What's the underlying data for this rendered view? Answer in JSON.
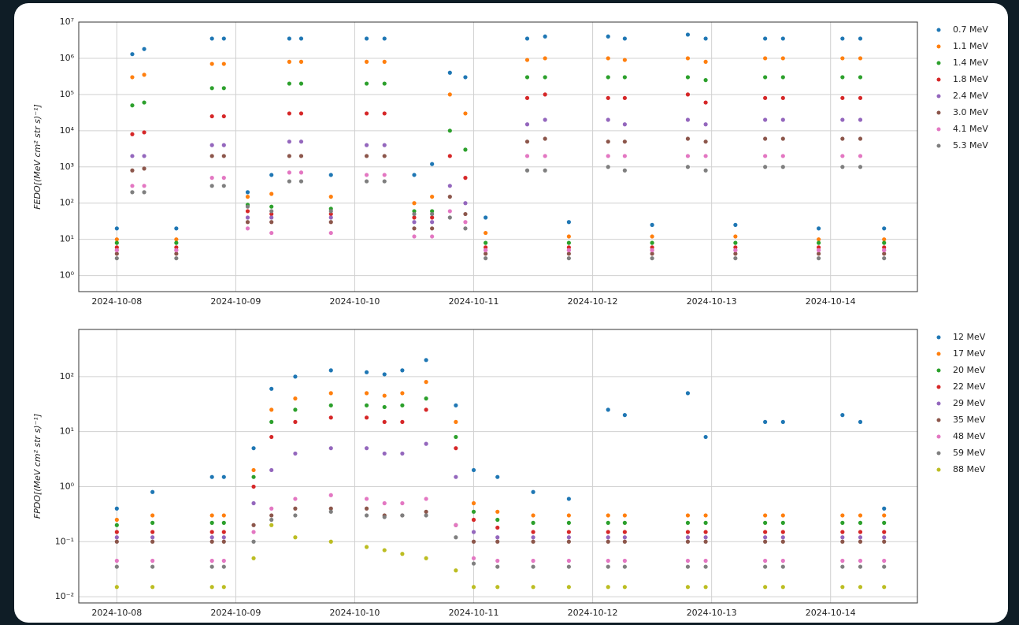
{
  "chart_data": [
    {
      "type": "scatter",
      "y_label": "FEDO[(MeV cm² str s)⁻¹]",
      "yscale": "log",
      "grid": true,
      "legend": "right",
      "xlim": [
        -0.32,
        6.73
      ],
      "xticks": [
        {
          "value": 0,
          "label": "2024-10-08"
        },
        {
          "value": 1,
          "label": "2024-10-09"
        },
        {
          "value": 2,
          "label": "2024-10-10"
        },
        {
          "value": 3,
          "label": "2024-10-11"
        },
        {
          "value": 4,
          "label": "2024-10-12"
        },
        {
          "value": 5,
          "label": "2024-10-13"
        },
        {
          "value": 6,
          "label": "2024-10-14"
        }
      ],
      "ylim": [
        0.36,
        10000000
      ],
      "yticks": [
        {
          "value": 1,
          "label": "10⁰"
        },
        {
          "value": 10,
          "label": "10¹"
        },
        {
          "value": 100,
          "label": "10²"
        },
        {
          "value": 1000,
          "label": "10³"
        },
        {
          "value": 10000,
          "label": "10⁴"
        },
        {
          "value": 100000,
          "label": "10⁵"
        },
        {
          "value": 1000000,
          "label": "10⁶"
        },
        {
          "value": 10000000,
          "label": "10⁷"
        }
      ],
      "x": [
        0,
        0.13,
        0.23,
        0.5,
        0.8,
        0.9,
        1.1,
        1.3,
        1.45,
        1.55,
        1.8,
        2.1,
        2.25,
        2.5,
        2.65,
        2.8,
        2.93,
        3.1,
        3.45,
        3.6,
        3.8,
        4.13,
        4.27,
        4.5,
        4.8,
        4.95,
        5.2,
        5.45,
        5.6,
        5.9,
        6.1,
        6.25,
        6.45
      ],
      "series": [
        {
          "name": "0.7 MeV",
          "color": "#1f77b4",
          "values": [
            20,
            1300000.0,
            1800000.0,
            20,
            3500000.0,
            3500000.0,
            200,
            600,
            3500000.0,
            3500000.0,
            600,
            3500000.0,
            3500000.0,
            600,
            1200,
            400000.0,
            300000.0,
            40,
            3500000.0,
            4000000.0,
            30,
            4000000.0,
            3500000.0,
            25,
            4500000.0,
            3500000.0,
            25,
            3500000.0,
            3500000.0,
            20,
            3500000.0,
            3500000.0,
            20
          ]
        },
        {
          "name": "1.1 MeV",
          "color": "#ff7f0e",
          "values": [
            10,
            300000.0,
            350000.0,
            10,
            700000.0,
            700000.0,
            150,
            180,
            800000.0,
            800000.0,
            150,
            800000.0,
            800000.0,
            100,
            150,
            100000.0,
            30000.0,
            15,
            900000.0,
            1000000.0,
            12,
            1000000.0,
            900000.0,
            12,
            1000000.0,
            800000.0,
            12,
            1000000.0,
            1000000.0,
            10,
            1000000.0,
            1000000.0,
            10
          ]
        },
        {
          "name": "1.4 MeV",
          "color": "#2ca02c",
          "values": [
            8,
            50000.0,
            60000.0,
            8,
            150000.0,
            150000.0,
            90,
            80,
            200000.0,
            200000.0,
            70,
            200000.0,
            200000.0,
            60,
            60,
            10000.0,
            3000.0,
            8,
            300000.0,
            300000.0,
            8,
            300000.0,
            300000.0,
            8,
            300000.0,
            250000.0,
            8,
            300000.0,
            300000.0,
            8,
            300000.0,
            300000.0,
            8
          ]
        },
        {
          "name": "1.8 MeV",
          "color": "#d62728",
          "values": [
            6,
            8000.0,
            9000.0,
            6,
            25000.0,
            25000.0,
            60,
            50,
            30000.0,
            30000.0,
            50,
            30000.0,
            30000.0,
            40,
            40,
            2000.0,
            500,
            6,
            80000.0,
            100000.0,
            6,
            80000.0,
            80000.0,
            6,
            100000.0,
            60000.0,
            6,
            80000.0,
            80000.0,
            6,
            80000.0,
            80000.0,
            6
          ]
        },
        {
          "name": "2.4 MeV",
          "color": "#9467bd",
          "values": [
            5,
            2000.0,
            2000.0,
            5,
            4000.0,
            4000.0,
            40,
            40,
            5000.0,
            5000.0,
            40,
            4000.0,
            4000.0,
            30,
            30,
            300,
            100,
            5,
            15000.0,
            20000.0,
            5,
            20000.0,
            15000.0,
            5,
            20000.0,
            15000.0,
            5,
            20000.0,
            20000.0,
            5,
            20000.0,
            20000.0,
            5
          ]
        },
        {
          "name": "3.0 MeV",
          "color": "#8c564b",
          "values": [
            4,
            800,
            900,
            4,
            2000.0,
            2000.0,
            30,
            30,
            2000.0,
            2000.0,
            30,
            2000.0,
            2000.0,
            20,
            20,
            150,
            50,
            4,
            5000.0,
            6000.0,
            4,
            5000.0,
            5000.0,
            4,
            6000.0,
            5000.0,
            4,
            6000.0,
            6000.0,
            4,
            6000.0,
            6000.0,
            4
          ]
        },
        {
          "name": "4.1 MeV",
          "color": "#e377c2",
          "values": [
            5,
            300,
            300,
            5,
            500,
            500,
            20,
            15,
            700,
            700,
            15,
            600,
            600,
            12,
            12,
            60,
            30,
            5,
            2000.0,
            2000.0,
            5,
            2000.0,
            2000.0,
            5,
            2000.0,
            2000.0,
            5,
            2000.0,
            2000.0,
            5,
            2000.0,
            2000.0,
            5
          ]
        },
        {
          "name": "5.3 MeV",
          "color": "#7f7f7f",
          "values": [
            3,
            200,
            200,
            3,
            300,
            300,
            80,
            60,
            400,
            400,
            60,
            400,
            400,
            50,
            50,
            40,
            20,
            3,
            800,
            800,
            3,
            1000.0,
            800,
            3,
            1000.0,
            800,
            3,
            1000.0,
            1000.0,
            3,
            1000.0,
            1000.0,
            3
          ]
        }
      ]
    },
    {
      "type": "scatter",
      "y_label": "FPDO[(MeV cm² str s)⁻¹]",
      "yscale": "log",
      "grid": true,
      "legend": "right",
      "xlim": [
        -0.32,
        6.73
      ],
      "xticks": [
        {
          "value": 0,
          "label": "2024-10-08"
        },
        {
          "value": 1,
          "label": "2024-10-09"
        },
        {
          "value": 2,
          "label": "2024-10-10"
        },
        {
          "value": 3,
          "label": "2024-10-11"
        },
        {
          "value": 4,
          "label": "2024-10-12"
        },
        {
          "value": 5,
          "label": "2024-10-13"
        },
        {
          "value": 6,
          "label": "2024-10-14"
        }
      ],
      "ylim": [
        0.0077,
        720
      ],
      "yticks": [
        {
          "value": 0.01,
          "label": "10⁻²"
        },
        {
          "value": 0.1,
          "label": "10⁻¹"
        },
        {
          "value": 1,
          "label": "10⁰"
        },
        {
          "value": 10,
          "label": "10¹"
        },
        {
          "value": 100,
          "label": "10²"
        }
      ],
      "x": [
        0,
        0.3,
        0.8,
        0.9,
        1.15,
        1.3,
        1.5,
        1.8,
        2.1,
        2.25,
        2.4,
        2.6,
        2.85,
        3.0,
        3.2,
        3.5,
        3.8,
        4.13,
        4.27,
        4.8,
        4.95,
        5.45,
        5.6,
        6.1,
        6.25,
        6.45
      ],
      "series": [
        {
          "name": "12 MeV",
          "color": "#1f77b4",
          "values": [
            0.4,
            0.8,
            1.5,
            1.5,
            5,
            60,
            100,
            130,
            120,
            110,
            130,
            200,
            30,
            2,
            1.5,
            0.8,
            0.6,
            25,
            20,
            50,
            8,
            15,
            15,
            20,
            15,
            0.4
          ]
        },
        {
          "name": "17 MeV",
          "color": "#ff7f0e",
          "values": [
            0.25,
            0.3,
            0.3,
            0.3,
            2,
            25,
            40,
            50,
            50,
            45,
            50,
            80,
            15,
            0.5,
            0.35,
            0.3,
            0.3,
            0.3,
            0.3,
            0.3,
            0.3,
            0.3,
            0.3,
            0.3,
            0.3,
            0.3
          ]
        },
        {
          "name": "20 MeV",
          "color": "#2ca02c",
          "values": [
            0.2,
            0.22,
            0.22,
            0.22,
            1.5,
            15,
            25,
            30,
            30,
            28,
            30,
            40,
            8,
            0.35,
            0.25,
            0.22,
            0.22,
            0.22,
            0.22,
            0.22,
            0.22,
            0.22,
            0.22,
            0.22,
            0.22,
            0.22
          ]
        },
        {
          "name": "22 MeV",
          "color": "#d62728",
          "values": [
            0.15,
            0.15,
            0.15,
            0.15,
            1,
            8,
            15,
            18,
            18,
            15,
            15,
            25,
            5,
            0.25,
            0.18,
            0.15,
            0.15,
            0.15,
            0.15,
            0.15,
            0.15,
            0.15,
            0.15,
            0.15,
            0.15,
            0.15
          ]
        },
        {
          "name": "29 MeV",
          "color": "#9467bd",
          "values": [
            0.12,
            0.12,
            0.12,
            0.12,
            0.5,
            2,
            4,
            5,
            5,
            4,
            4,
            6,
            1.5,
            0.15,
            0.12,
            0.12,
            0.12,
            0.12,
            0.12,
            0.12,
            0.12,
            0.12,
            0.12,
            0.12,
            0.12,
            0.12
          ]
        },
        {
          "name": "35 MeV",
          "color": "#8c564b",
          "values": [
            0.1,
            0.1,
            0.1,
            0.1,
            0.2,
            0.3,
            0.4,
            0.4,
            0.4,
            0.3,
            0.3,
            0.35,
            0.2,
            0.1,
            0.1,
            0.1,
            0.1,
            0.1,
            0.1,
            0.1,
            0.1,
            0.1,
            0.1,
            0.1,
            0.1,
            0.1
          ]
        },
        {
          "name": "48 MeV",
          "color": "#e377c2",
          "values": [
            0.045,
            0.045,
            0.045,
            0.045,
            0.15,
            0.4,
            0.6,
            0.7,
            0.6,
            0.5,
            0.5,
            0.6,
            0.2,
            0.05,
            0.045,
            0.045,
            0.045,
            0.045,
            0.045,
            0.045,
            0.045,
            0.045,
            0.045,
            0.045,
            0.045,
            0.045
          ]
        },
        {
          "name": "59 MeV",
          "color": "#7f7f7f",
          "values": [
            0.035,
            0.035,
            0.035,
            0.035,
            0.1,
            0.25,
            0.3,
            0.35,
            0.3,
            0.28,
            0.3,
            0.3,
            0.12,
            0.04,
            0.035,
            0.035,
            0.035,
            0.035,
            0.035,
            0.035,
            0.035,
            0.035,
            0.035,
            0.035,
            0.035,
            0.035
          ]
        },
        {
          "name": "88 MeV",
          "color": "#bcbd22",
          "values": [
            0.015,
            0.015,
            0.015,
            0.015,
            0.05,
            0.2,
            0.12,
            0.1,
            0.08,
            0.07,
            0.06,
            0.05,
            0.03,
            0.015,
            0.015,
            0.015,
            0.015,
            0.015,
            0.015,
            0.015,
            0.015,
            0.015,
            0.015,
            0.015,
            0.015,
            0.015
          ]
        }
      ]
    }
  ]
}
